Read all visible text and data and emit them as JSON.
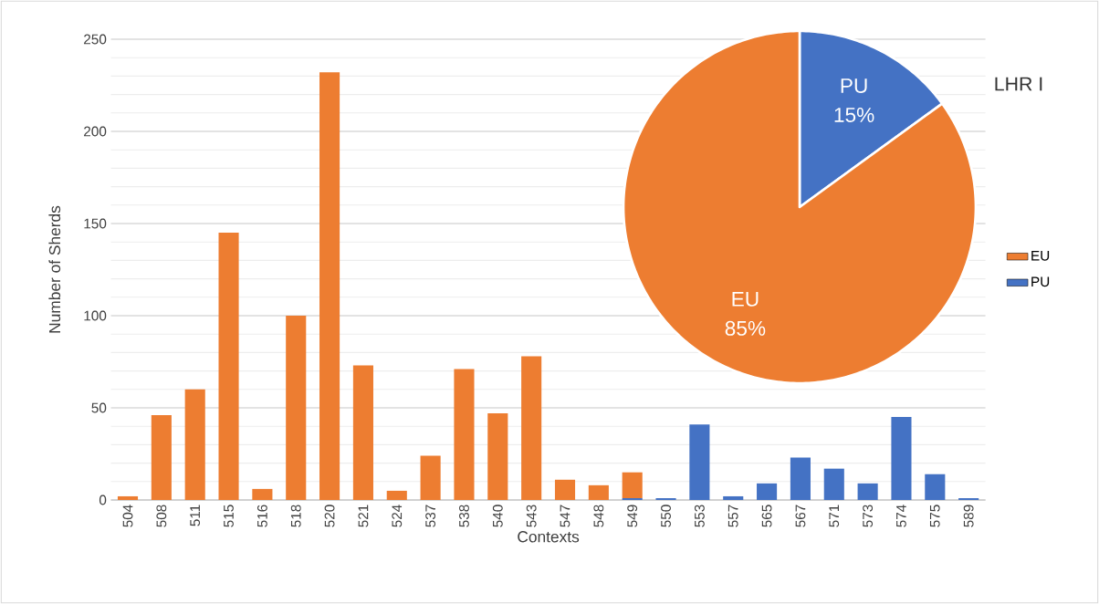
{
  "chart_data": [
    {
      "type": "bar",
      "stacked": true,
      "xlabel": "Contexts",
      "ylabel": "Number of Sherds",
      "categories": [
        "504",
        "508",
        "511",
        "515",
        "516",
        "518",
        "520",
        "521",
        "524",
        "537",
        "538",
        "540",
        "543",
        "547",
        "548",
        "549",
        "550",
        "553",
        "557",
        "565",
        "567",
        "571",
        "573",
        "574",
        "575",
        "589"
      ],
      "series": [
        {
          "name": "PU",
          "color": "#4472c4",
          "values": [
            null,
            null,
            null,
            null,
            null,
            null,
            null,
            null,
            null,
            null,
            null,
            null,
            null,
            null,
            null,
            1,
            1,
            41,
            2,
            9,
            23,
            17,
            9,
            45,
            14,
            1
          ]
        },
        {
          "name": "EU",
          "color": "#ed7d31",
          "values": [
            2,
            46,
            60,
            145,
            6,
            100,
            232,
            73,
            5,
            24,
            71,
            47,
            78,
            11,
            8,
            14,
            null,
            null,
            null,
            null,
            null,
            null,
            null,
            null,
            null,
            null
          ]
        }
      ],
      "ylim": [
        0,
        250
      ],
      "yticks": [
        0,
        50,
        100,
        150,
        200,
        250
      ],
      "grid": "y",
      "legend": "right"
    },
    {
      "type": "pie",
      "title": "LHR I",
      "categories": [
        "PU",
        "EU"
      ],
      "values": [
        15,
        85
      ],
      "colors": [
        "#4472c4",
        "#ed7d31"
      ],
      "value_labels": [
        "15%",
        "85%"
      ]
    }
  ]
}
